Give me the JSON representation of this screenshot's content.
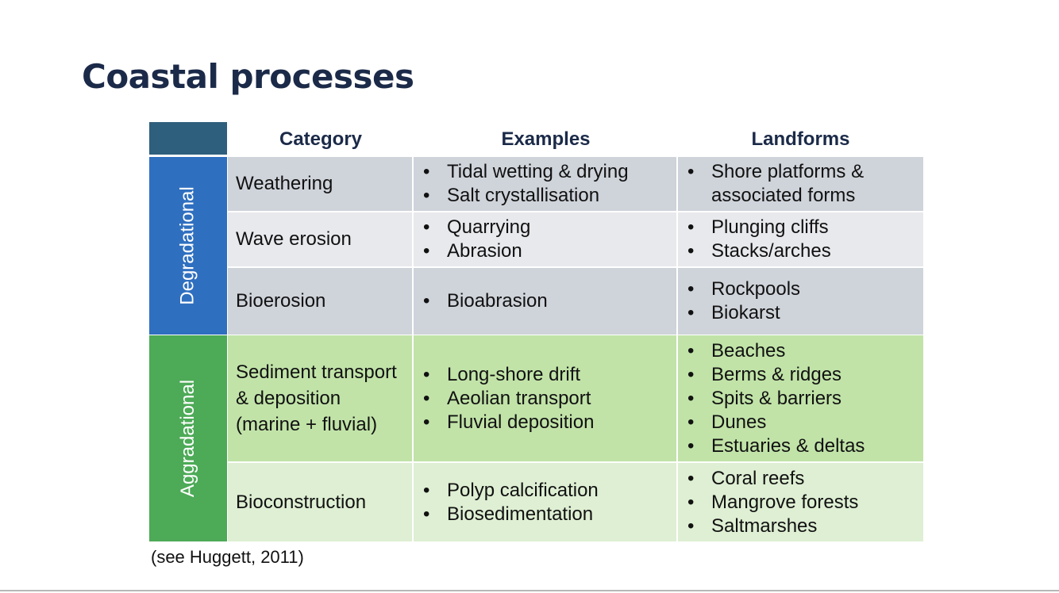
{
  "slide": {
    "title": "Coastal processes",
    "citation": "(see Huggett, 2011)"
  },
  "table": {
    "headers": [
      "Category",
      "Examples",
      "Landforms"
    ],
    "groups": [
      {
        "label": "Degradational",
        "color": "#2f6fbf",
        "rows": [
          {
            "category": "Weathering",
            "examples": [
              "Tidal wetting & drying",
              "Salt crystallisation"
            ],
            "landforms": [
              "Shore platforms & associated forms"
            ]
          },
          {
            "category": "Wave erosion",
            "examples": [
              "Quarrying",
              "Abrasion"
            ],
            "landforms": [
              "Plunging cliffs",
              "Stacks/arches"
            ]
          },
          {
            "category": "Bioerosion",
            "examples": [
              "Bioabrasion"
            ],
            "landforms": [
              "Rockpools",
              "Biokarst"
            ]
          }
        ]
      },
      {
        "label": "Aggradational",
        "color": "#4daa57",
        "rows": [
          {
            "category": "Sediment transport & deposition (marine + fluvial)",
            "examples": [
              "Long-shore drift",
              "Aeolian transport",
              "Fluvial deposition"
            ],
            "landforms": [
              "Beaches",
              "Berms & ridges",
              "Spits & barriers",
              "Dunes",
              "Estuaries & deltas"
            ]
          },
          {
            "category": "Bioconstruction",
            "examples": [
              "Polyp calcification",
              "Biosedimentation"
            ],
            "landforms": [
              "Coral reefs",
              "Mangrove forests",
              "Saltmarshes"
            ]
          }
        ]
      }
    ]
  }
}
